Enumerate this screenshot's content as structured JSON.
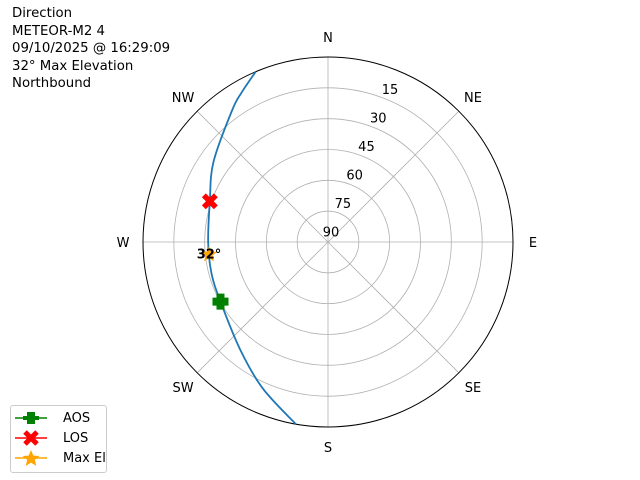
{
  "info": {
    "lines": [
      "Direction",
      "METEOR-M2 4",
      "09/10/2025 @ 16:29:09",
      "32° Max Elevation",
      "Northbound"
    ]
  },
  "chart_data": {
    "type": "polar",
    "theta_direction": "clockwise",
    "theta_zero": "N",
    "compass_labels": [
      "N",
      "NE",
      "E",
      "SE",
      "S",
      "SW",
      "W",
      "NW"
    ],
    "radial_ticks": [
      "15",
      "30",
      "45",
      "60",
      "75",
      "90"
    ],
    "radial_range": [
      0,
      90
    ],
    "radial_axis": "elevation, 90 at center",
    "grid": true,
    "track": {
      "color": "#1f77b4",
      "points": [
        [
          337,
          0
        ],
        [
          330,
          6
        ],
        [
          324,
          10.7
        ],
        [
          305,
          22
        ],
        [
          289,
          29.2
        ],
        [
          270,
          31.7
        ],
        [
          255,
          31.3
        ],
        [
          241,
          30.2
        ],
        [
          219,
          22.3
        ],
        [
          204,
          12
        ],
        [
          190,
          0
        ]
      ]
    },
    "markers": [
      {
        "name": "AOS",
        "az": 241,
        "el": 30.2,
        "color": "#008000",
        "symbol": "plus"
      },
      {
        "name": "LOS",
        "az": 289,
        "el": 29.2,
        "color": "#ff0000",
        "symbol": "x"
      },
      {
        "name": "Max El",
        "az": 264,
        "el": 31.8,
        "color": "#ffa500",
        "symbol": "star"
      }
    ],
    "annotation": "32°",
    "legend": {
      "placement": "bottom-left",
      "entries": [
        "AOS",
        "LOS",
        "Max El"
      ]
    }
  }
}
